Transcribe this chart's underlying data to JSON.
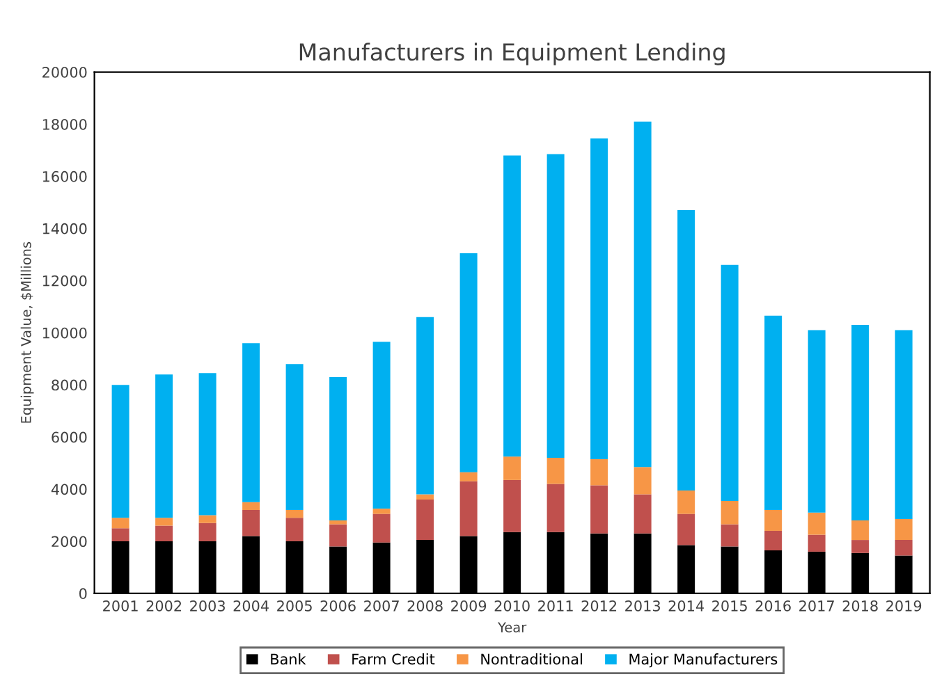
{
  "chart_data": {
    "type": "bar",
    "title": "Manufacturers in Equipment Lending",
    "xlabel": "Year",
    "ylabel": "Equipment Value, $Millions",
    "categories": [
      "2001",
      "2002",
      "2003",
      "2004",
      "2005",
      "2006",
      "2007",
      "2008",
      "2009",
      "2010",
      "2011",
      "2012",
      "2013",
      "2014",
      "2015",
      "2016",
      "2017",
      "2018",
      "2019"
    ],
    "stacked": true,
    "series": [
      {
        "name": "Bank",
        "color": "#000000",
        "values": [
          2000,
          2000,
          2000,
          2200,
          2000,
          1800,
          1950,
          2050,
          2200,
          2350,
          2350,
          2300,
          2300,
          1850,
          1800,
          1650,
          1600,
          1550,
          1450
        ]
      },
      {
        "name": "Farm Credit",
        "color": "#c0504d",
        "values": [
          500,
          600,
          700,
          1000,
          900,
          850,
          1100,
          1550,
          2100,
          2000,
          1850,
          1850,
          1500,
          1200,
          850,
          750,
          650,
          500,
          600
        ]
      },
      {
        "name": "Nontraditional",
        "color": "#f79646",
        "values": [
          400,
          300,
          300,
          300,
          300,
          150,
          200,
          200,
          350,
          900,
          1000,
          1000,
          1050,
          900,
          900,
          800,
          850,
          750,
          800
        ]
      },
      {
        "name": "Major Manufacturers",
        "color": "#00b0f0",
        "values": [
          5100,
          5500,
          5450,
          6100,
          5600,
          5500,
          6400,
          6800,
          8400,
          11550,
          11650,
          12300,
          13250,
          10750,
          9050,
          7450,
          7000,
          7500,
          7250
        ]
      }
    ],
    "ylim": [
      0,
      20000
    ],
    "yticks": [
      0,
      2000,
      4000,
      6000,
      8000,
      10000,
      12000,
      14000,
      16000,
      18000,
      20000
    ],
    "grid": false,
    "legend": "bottom"
  }
}
